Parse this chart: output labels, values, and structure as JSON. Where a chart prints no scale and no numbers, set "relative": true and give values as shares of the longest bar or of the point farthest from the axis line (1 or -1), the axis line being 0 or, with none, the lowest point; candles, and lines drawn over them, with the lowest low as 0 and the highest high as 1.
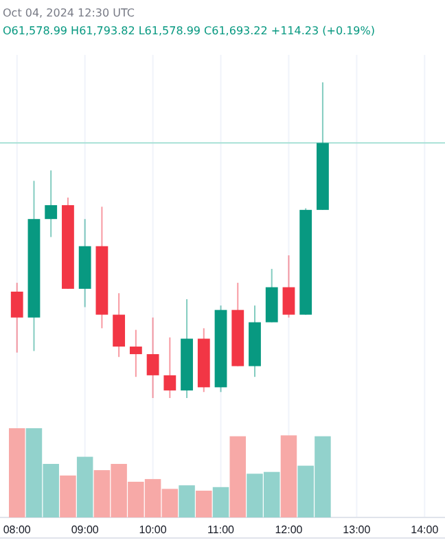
{
  "chart_data": [
    {
      "type": "candlestick",
      "relative": true,
      "annotations": [
        "Oct 04, 2024 12:30 UTC",
        "O61,578.99 H61,793.82 L61,578.99 C61,693.22 +114.23 (+0.19%)"
      ],
      "x": [
        8,
        8.25,
        8.5,
        8.75,
        9,
        9.25,
        9.5,
        9.75,
        10,
        10.25,
        10.5,
        10.75,
        11,
        11.25,
        11.5,
        11.75,
        12,
        12.25,
        12.5
      ],
      "ohlc": [
        [
          0.337,
          0.365,
          0.144,
          0.255
        ],
        [
          0.255,
          0.688,
          0.149,
          0.567
        ],
        [
          0.567,
          0.721,
          0.51,
          0.611
        ],
        [
          0.611,
          0.635,
          0.346,
          0.346
        ],
        [
          0.346,
          0.567,
          0.288,
          0.481
        ],
        [
          0.481,
          0.606,
          0.221,
          0.264
        ],
        [
          0.264,
          0.332,
          0.13,
          0.163
        ],
        [
          0.163,
          0.216,
          0.067,
          0.139
        ],
        [
          0.139,
          0.255,
          0,
          0.072
        ],
        [
          0.072,
          0.192,
          0,
          0.024
        ],
        [
          0.024,
          0.313,
          0,
          0.188
        ],
        [
          0.188,
          0.221,
          0.019,
          0.034
        ],
        [
          0.034,
          0.293,
          0.019,
          0.279
        ],
        [
          0.279,
          0.365,
          0.101,
          0.101
        ],
        [
          0.101,
          0.293,
          0.067,
          0.24
        ],
        [
          0.24,
          0.409,
          0.24,
          0.351
        ],
        [
          0.351,
          0.452,
          0.255,
          0.264
        ],
        [
          0.264,
          0.601,
          0.264,
          0.596
        ],
        [
          0.596,
          1,
          0.596,
          0.808
        ]
      ],
      "colors": [
        "#f23645",
        "#089981",
        "#089981",
        "#f23645",
        "#089981",
        "#f23645",
        "#f23645",
        "#f23645",
        "#f23645",
        "#f23645",
        "#089981",
        "#f23645",
        "#089981",
        "#f23645",
        "#089981",
        "#089981",
        "#f23645",
        "#089981",
        "#089981"
      ],
      "ref_lines": [
        {
          "axis": "y",
          "value": 0.808,
          "color": "#a7e0d6"
        }
      ],
      "xlim": [
        7.75,
        14.3
      ],
      "xticks": [
        {
          "value": 8,
          "label": null
        },
        {
          "value": 9,
          "label": null
        },
        {
          "value": 10,
          "label": null
        },
        {
          "value": 11,
          "label": null
        },
        {
          "value": 12,
          "label": null
        },
        {
          "value": 13,
          "label": null
        },
        {
          "value": 14,
          "label": null
        }
      ],
      "grid": "x",
      "tick_labels": false
    },
    {
      "type": "bar",
      "relative": true,
      "x": [
        8,
        8.25,
        8.5,
        8.75,
        9,
        9.25,
        9.5,
        9.75,
        10,
        10.25,
        10.5,
        10.75,
        11,
        11.25,
        11.5,
        11.75,
        12,
        12.25,
        12.5
      ],
      "values": [
        1,
        1,
        0.6,
        0.47,
        0.68,
        0.53,
        0.6,
        0.4,
        0.43,
        0.32,
        0.36,
        0.3,
        0.34,
        0.91,
        0.49,
        0.51,
        0.92,
        0.58,
        0.91
      ],
      "colors": [
        "#f7a9a7",
        "#92d2cc",
        "#92d2cc",
        "#f7a9a7",
        "#92d2cc",
        "#f7a9a7",
        "#f7a9a7",
        "#f7a9a7",
        "#f7a9a7",
        "#f7a9a7",
        "#92d2cc",
        "#f7a9a7",
        "#92d2cc",
        "#f7a9a7",
        "#92d2cc",
        "#92d2cc",
        "#f7a9a7",
        "#92d2cc",
        "#92d2cc"
      ],
      "xlim": [
        7.75,
        14.3
      ],
      "xticks": [
        {
          "value": 8,
          "label": "08:00"
        },
        {
          "value": 9,
          "label": "09:00"
        },
        {
          "value": 10,
          "label": "10:00"
        },
        {
          "value": 11,
          "label": "11:00"
        },
        {
          "value": 12,
          "label": "12:00"
        },
        {
          "value": 13,
          "label": "13:00"
        },
        {
          "value": 14,
          "label": "14:00"
        }
      ],
      "grid": "x",
      "tick_labels": "x"
    }
  ]
}
